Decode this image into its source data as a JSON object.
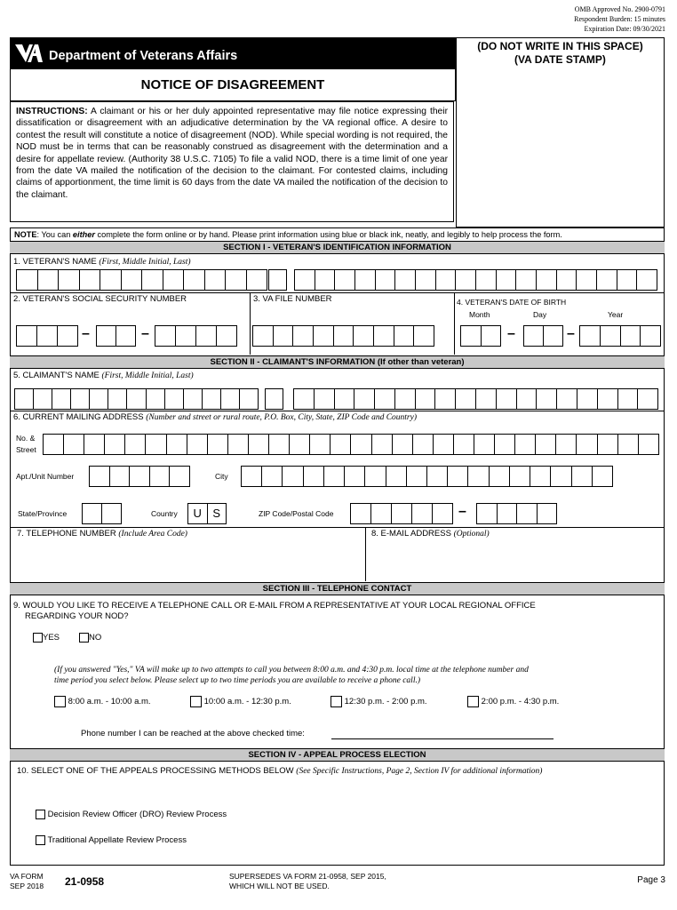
{
  "omb": {
    "approved": "OMB Approved No. 2900-0791",
    "burden": "Respondent Burden: 15 minutes",
    "expiration": "Expiration Date: 09/30/2021"
  },
  "header": {
    "logo_icon": "va-logo-icon",
    "logo_text": "VA",
    "department": "Department of Veterans Affairs",
    "title": "NOTICE OF DISAGREEMENT"
  },
  "stamp": {
    "line1": "(DO NOT WRITE IN THIS SPACE)",
    "line2": "(VA DATE STAMP)"
  },
  "instructions": {
    "label": "INSTRUCTIONS:",
    "text": " A claimant or his or her duly appointed representative may file notice expressing their dissatification or disagreement with an adjudicative determination by the VA regional office.  A desire to contest the result will constitute a notice of disagreement (NOD).  While special wording is not required, the NOD must be in terms that can be reasonably construed as disagreement with the determination and a desire for appellate review.  (Authority 38 U.S.C. 7105) To file a valid NOD, there is a time limit of one year from the date VA mailed the notification of the decision to the claimant.  For contested claims, including claims of apportionment, the time limit is 60 days from the date VA mailed the notification of the decision to the claimant."
  },
  "note": {
    "label": "NOTE",
    "pre": ": You can ",
    "emph": "either",
    "post": " complete the form online or by hand. Please print information using blue or black ink, neatly, and legibly to help process the form."
  },
  "section1": {
    "header": "SECTION I - VETERAN'S IDENTIFICATION INFORMATION",
    "name_label": "1. VETERAN'S NAME",
    "name_hint": "(First, Middle Initial, Last)",
    "ssn_label": "2. VETERAN'S SOCIAL SECURITY NUMBER",
    "file_label": "3. VA FILE NUMBER",
    "dob_label": "4. VETERAN'S DATE OF BIRTH",
    "month": "Month",
    "day": "Day",
    "year": "Year"
  },
  "section2": {
    "header": "SECTION II - CLAIMANT'S INFORMATION (If other than veteran)",
    "name_label": "5. CLAIMANT'S NAME",
    "name_hint": "(First, Middle Initial, Last)",
    "address_label": "6. CURRENT MAILING ADDRESS",
    "address_hint": "(Number and street or rural route, P.O. Box, City, State, ZIP Code and Country)",
    "street_label1": "No. &",
    "street_label2": "Street",
    "apt_label": "Apt./Unit Number",
    "city_label": "City",
    "state_label": "State/Province",
    "country_label": "Country",
    "country_value": [
      "U",
      "S"
    ],
    "zip_label": "ZIP Code/Postal Code",
    "phone_label": "7. TELEPHONE NUMBER",
    "phone_hint": "(Include Area Code)",
    "email_label": "8. E-MAIL ADDRESS",
    "email_hint": "(Optional)"
  },
  "section3": {
    "header": "SECTION III - TELEPHONE CONTACT",
    "q9_line1": "9. WOULD YOU LIKE TO RECEIVE A TELEPHONE CALL OR E-MAIL FROM A REPRESENTATIVE AT YOUR LOCAL REGIONAL OFFICE",
    "q9_line2": "REGARDING YOUR NOD?",
    "yes": "YES",
    "no": "NO",
    "info_line1": "(If you answered \"Yes,\" VA will make up to two attempts to call you between 8:00 a.m. and 4:30 p.m. local time at the telephone number and",
    "info_line2": "time period you select below.  Please select up to two time periods you are available to receive a phone call.)",
    "times": [
      "8:00 a.m. - 10:00 a.m.",
      "10:00 a.m. - 12:30 p.m.",
      "12:30 p.m. - 2:00 p.m.",
      "2:00 p.m. - 4:30 p.m."
    ],
    "phone_at_time": "Phone number I can be reached at the above checked time:"
  },
  "section4": {
    "header": "SECTION IV - APPEAL PROCESS ELECTION",
    "q10_label": "10. SELECT ONE OF THE APPEALS PROCESSING METHODS BELOW",
    "q10_hint": "(See Specific Instructions, Page 2, Section IV for additional information)",
    "options": [
      "Decision Review Officer (DRO) Review Process",
      "Traditional Appellate Review Process"
    ]
  },
  "footer": {
    "form_line1": "VA FORM",
    "form_line2": "SEP 2018",
    "form_number": "21-0958",
    "supersedes1": "SUPERSEDES VA FORM 21-0958, SEP 2015,",
    "supersedes2": "WHICH WILL NOT BE USED.",
    "page": "Page 3"
  }
}
